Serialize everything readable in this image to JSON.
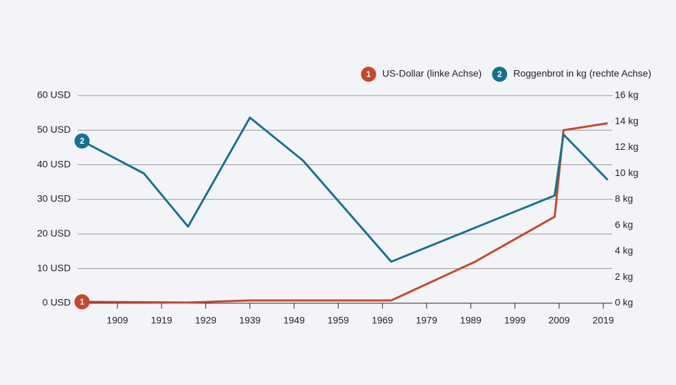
{
  "chart_data": {
    "type": "line",
    "series": [
      {
        "name": "US-Dollar (linke Achse)",
        "marker_label": "1",
        "color": "#c8472a",
        "axis": "y",
        "x": [
          1901,
          1915,
          1925,
          1939,
          1951,
          1971,
          1990,
          2008,
          2010,
          2020
        ],
        "values": [
          0.4,
          0.3,
          0.2,
          0.8,
          0.8,
          0.8,
          12,
          25,
          50,
          52
        ]
      },
      {
        "name": "Roggenbrot in kg (rechte Achse)",
        "marker_label": "2",
        "color": "#14728f",
        "axis": "y2",
        "x": [
          1901,
          1915,
          1925,
          1939,
          1951,
          1971,
          2008,
          2010,
          2020
        ],
        "values": [
          12.5,
          10,
          5.9,
          14.3,
          11,
          3.2,
          8.3,
          13,
          9.5
        ]
      }
    ],
    "xlim": [
      1900,
      2021
    ],
    "xticks": [
      1909,
      1919,
      1929,
      1939,
      1949,
      1959,
      1969,
      1979,
      1989,
      1999,
      2009,
      2019
    ],
    "ylim": [
      0,
      60
    ],
    "yticks": [
      {
        "value": 0,
        "label": "0 USD"
      },
      {
        "value": 10,
        "label": "10 USD"
      },
      {
        "value": 20,
        "label": "20 USD"
      },
      {
        "value": 30,
        "label": "30 USD"
      },
      {
        "value": 40,
        "label": "40 USD"
      },
      {
        "value": 50,
        "label": "50 USD"
      },
      {
        "value": 60,
        "label": "60 USD"
      }
    ],
    "y2lim": [
      0,
      16
    ],
    "y2ticks": [
      {
        "value": 0,
        "label": "0 kg"
      },
      {
        "value": 2,
        "label": "2 kg"
      },
      {
        "value": 4,
        "label": "4 kg"
      },
      {
        "value": 6,
        "label": "6 kg"
      },
      {
        "value": 8,
        "label": "8 kg"
      },
      {
        "value": 10,
        "label": "10 kg"
      },
      {
        "value": 12,
        "label": "12 kg"
      },
      {
        "value": 14,
        "label": "14 kg"
      },
      {
        "value": 16,
        "label": "16 kg"
      }
    ],
    "grid": true,
    "legend": "top-right"
  }
}
